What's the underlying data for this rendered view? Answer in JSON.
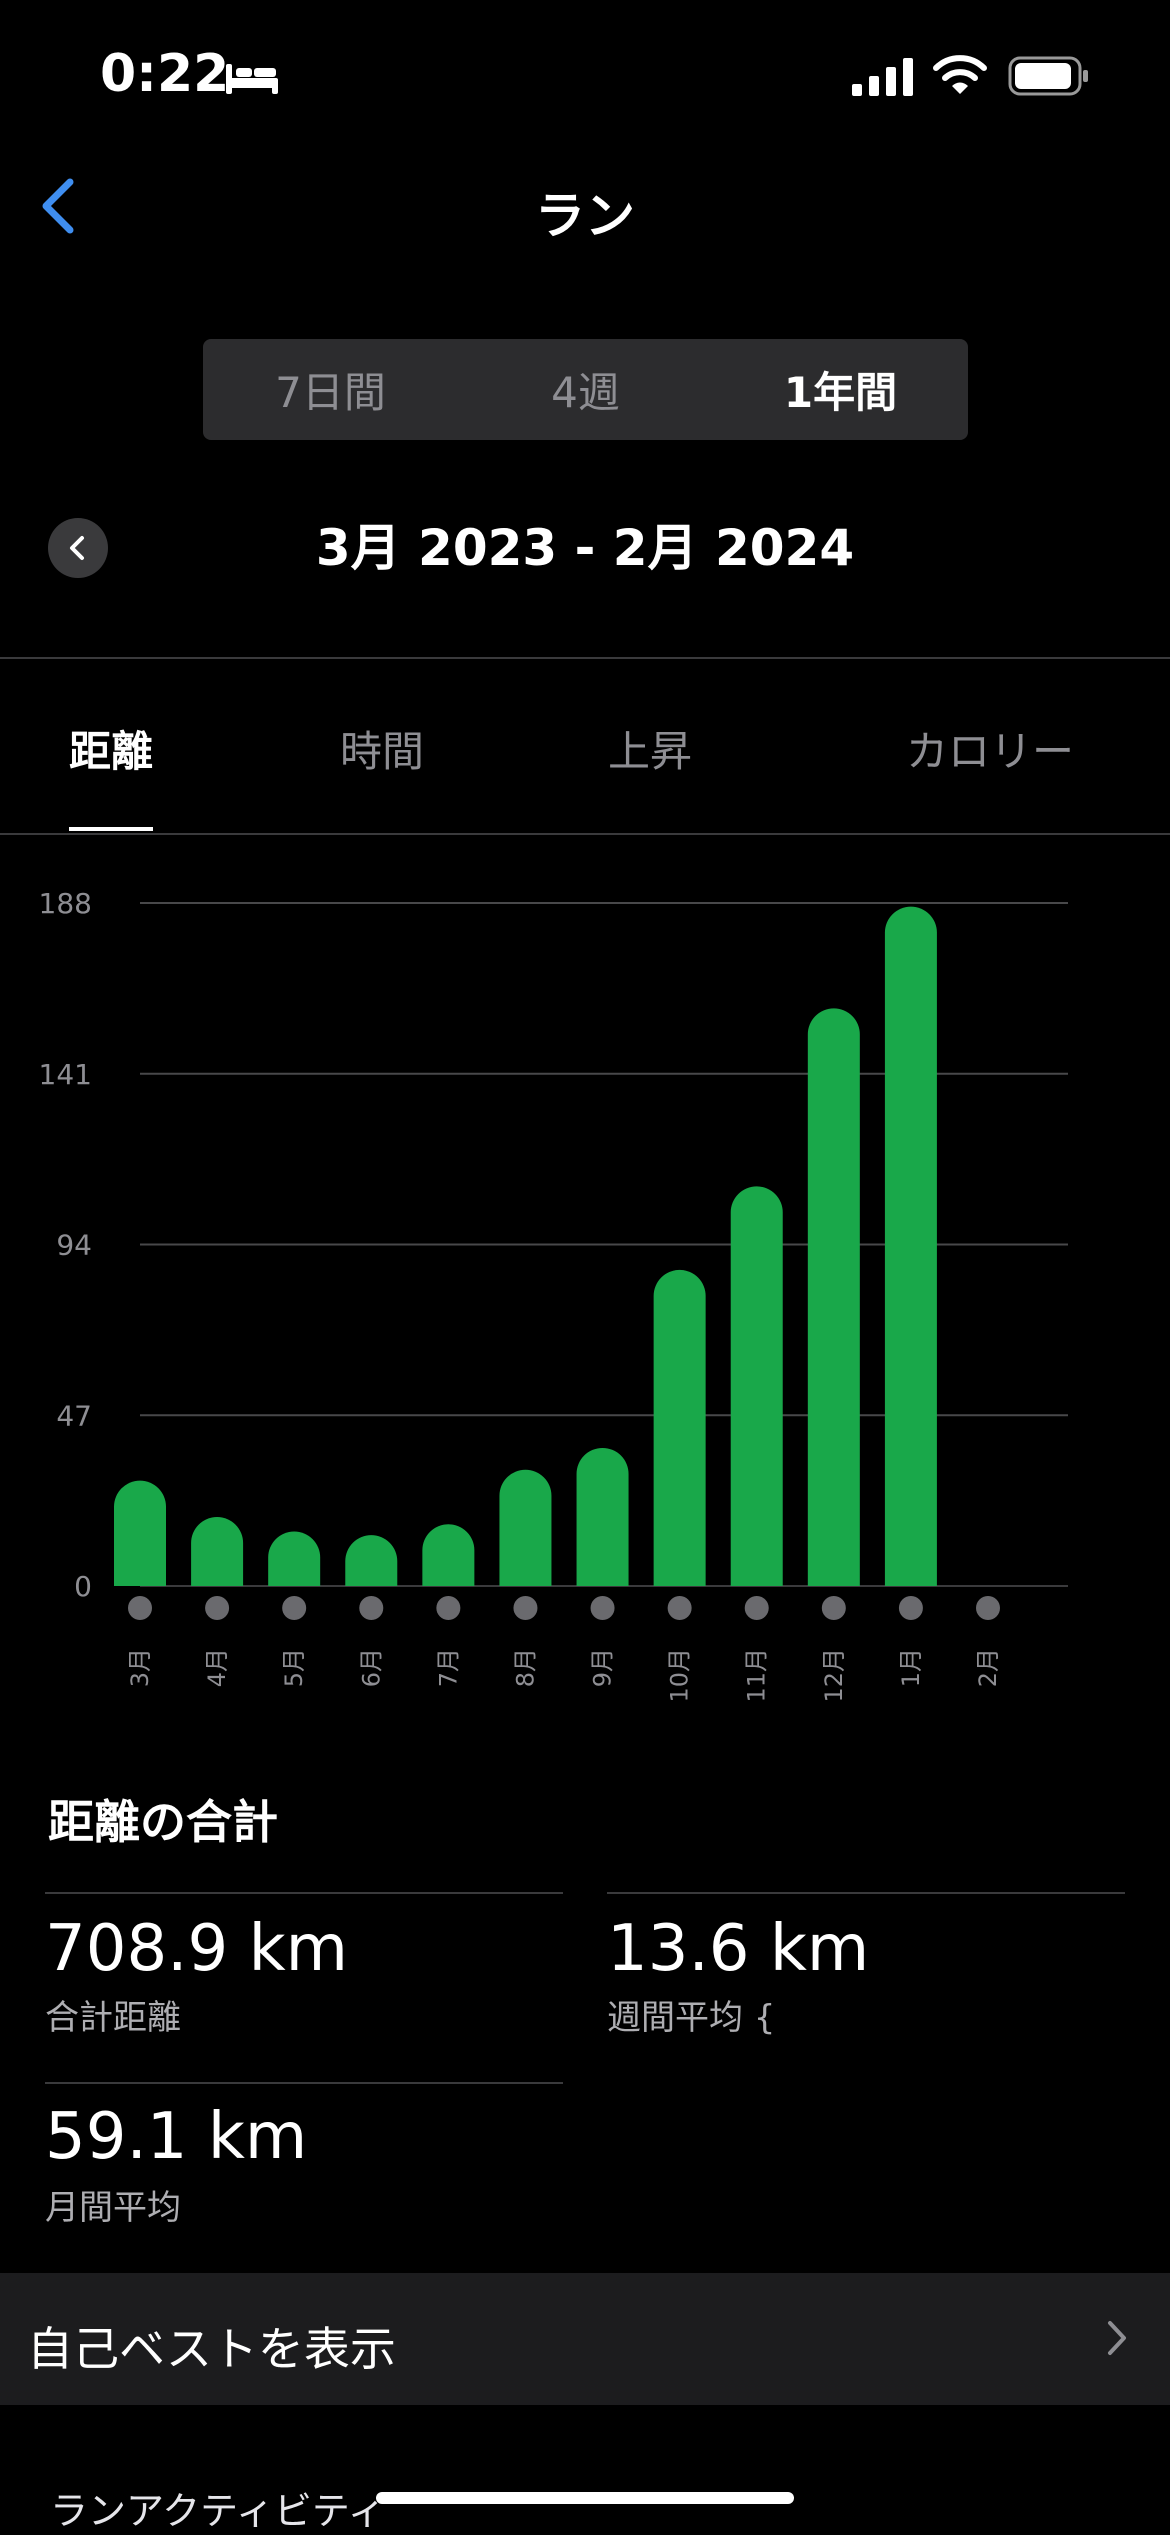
{
  "status": {
    "time": "0:22"
  },
  "nav": {
    "title": "ラン"
  },
  "segments": [
    "7日間",
    "4週",
    "1年間"
  ],
  "segment_active": "1年間",
  "date_range": "3月 2023 - 2月 2024",
  "metric_tabs": [
    "距離",
    "時間",
    "上昇",
    "カロリー"
  ],
  "metric_tab_active": "距離",
  "colors": {
    "bar": "#19a84a",
    "background": "#000000",
    "accent": "#3f8ef0"
  },
  "chart_data": {
    "type": "bar",
    "categories": [
      "3月",
      "4月",
      "5月",
      "6月",
      "7月",
      "8月",
      "9月",
      "10月",
      "11月",
      "12月",
      "1月",
      "2月"
    ],
    "values": [
      29,
      19,
      15,
      14,
      17,
      32,
      38,
      87,
      110,
      159,
      187,
      0
    ],
    "y_ticks": [
      0,
      47,
      94,
      141,
      188
    ],
    "ylim": [
      0,
      188
    ],
    "grid": true
  },
  "summary": {
    "title": "距離の合計",
    "total_value": "708.9 km",
    "total_label": "合計距離",
    "weekly_value": "13.6 km",
    "weekly_label": "週間平均 {",
    "monthly_value": "59.1 km",
    "monthly_label": "月間平均"
  },
  "best_link": "自己ベストを表示",
  "activity_section": "ランアクティビティ"
}
